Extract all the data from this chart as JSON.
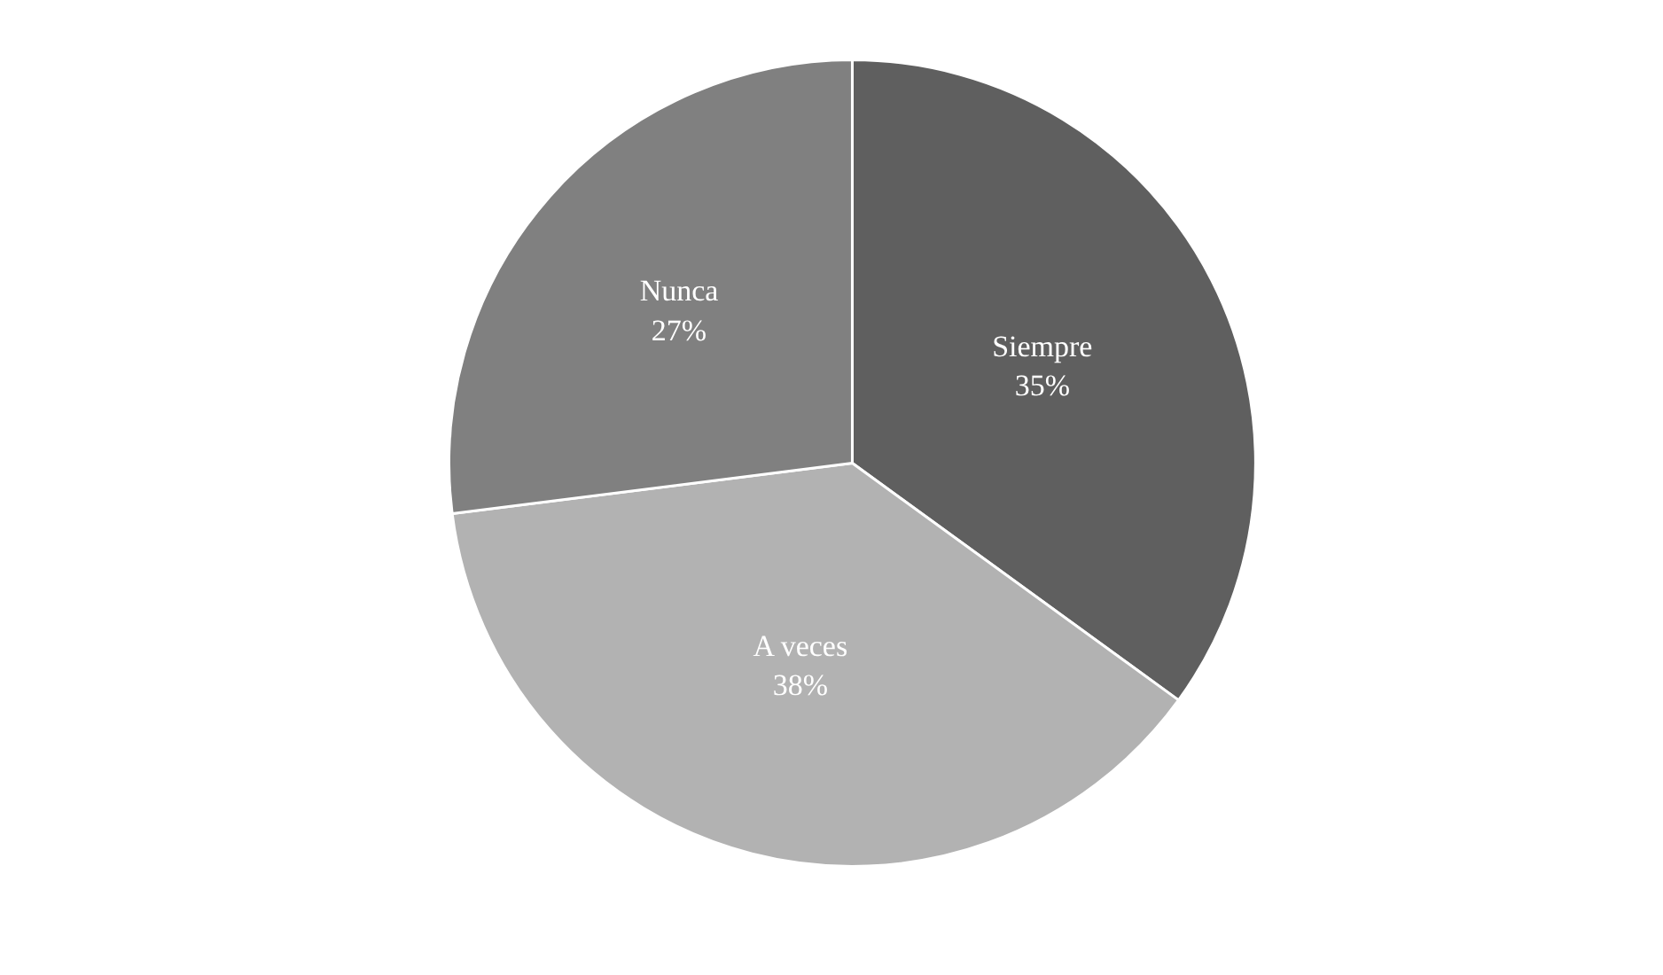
{
  "chart_data": {
    "type": "pie",
    "categories": [
      "Siempre",
      "A veces",
      "Nunca"
    ],
    "values": [
      35,
      38,
      27
    ],
    "value_labels": [
      "35%",
      "38%",
      "27%"
    ],
    "colors": [
      "#5f5f5f",
      "#b2b2b2",
      "#808080"
    ],
    "legend": false
  }
}
